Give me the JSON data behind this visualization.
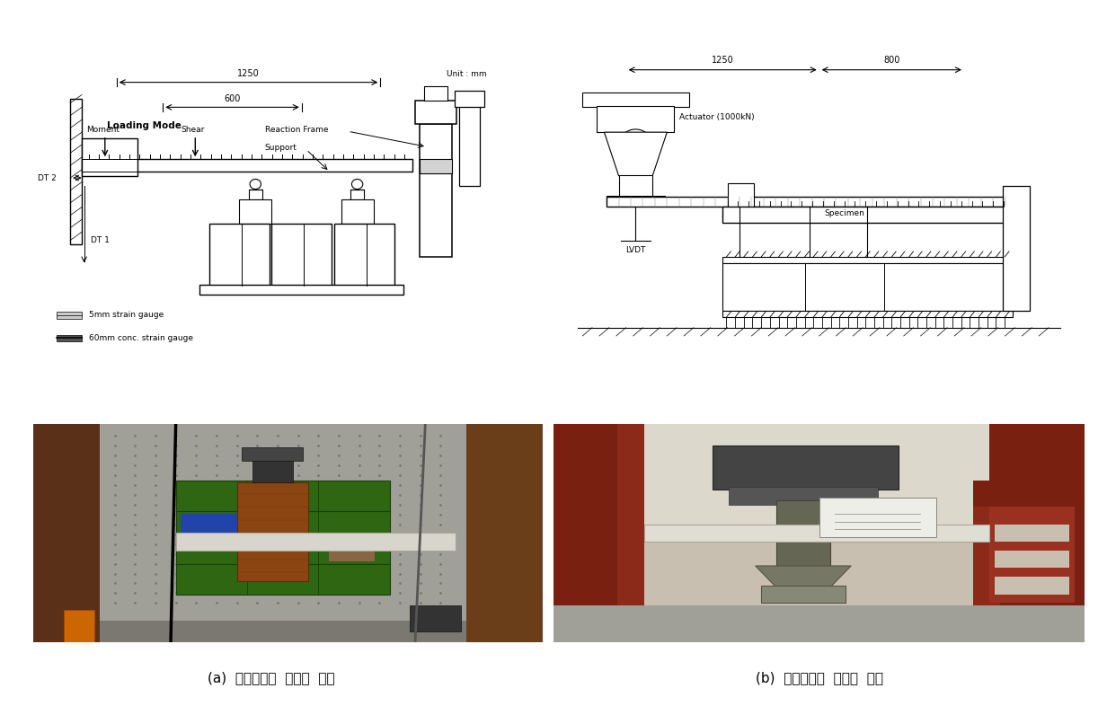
{
  "bg_color": "#ffffff",
  "caption_a": "(a)  단조가력시  실험체  설치",
  "caption_b": "(b)  반복가력시  실험체  설치",
  "caption_fontsize": 11,
  "fig_width": 12.32,
  "fig_height": 7.86,
  "top_left_diagram": {
    "dim1": "1250",
    "dim2": "600",
    "unit": "Unit : mm",
    "labels": [
      "Loading Mode",
      "Moment",
      "Shear",
      "Reaction Frame",
      "Support",
      "DT 2",
      "DT 1"
    ],
    "legend1": "5mm strain gauge",
    "legend2": "60mm conc. strain gauge"
  },
  "top_right_diagram": {
    "dim1": "1250",
    "dim2": "800",
    "labels": [
      "Actuator (1000kN)",
      "Specimen",
      "LVDT"
    ]
  },
  "photo_left_colors": {
    "bg": "#7a6a5a",
    "wall_left": "#6b4423",
    "wall_right": "#7a5535",
    "pegboard": "#b0b0a8",
    "shelf": "#3a6e1a",
    "specimen_block": "#8B5E3C",
    "slab": "#d8d0c0",
    "floor": "#888880"
  },
  "photo_right_colors": {
    "bg": "#c8bfaa",
    "column_left": "#7a2010",
    "column_right": "#8B2010",
    "actuator_dark": "#444444",
    "specimen": "#c0bab0",
    "floor": "#909090",
    "box": "#e8e0d0"
  }
}
